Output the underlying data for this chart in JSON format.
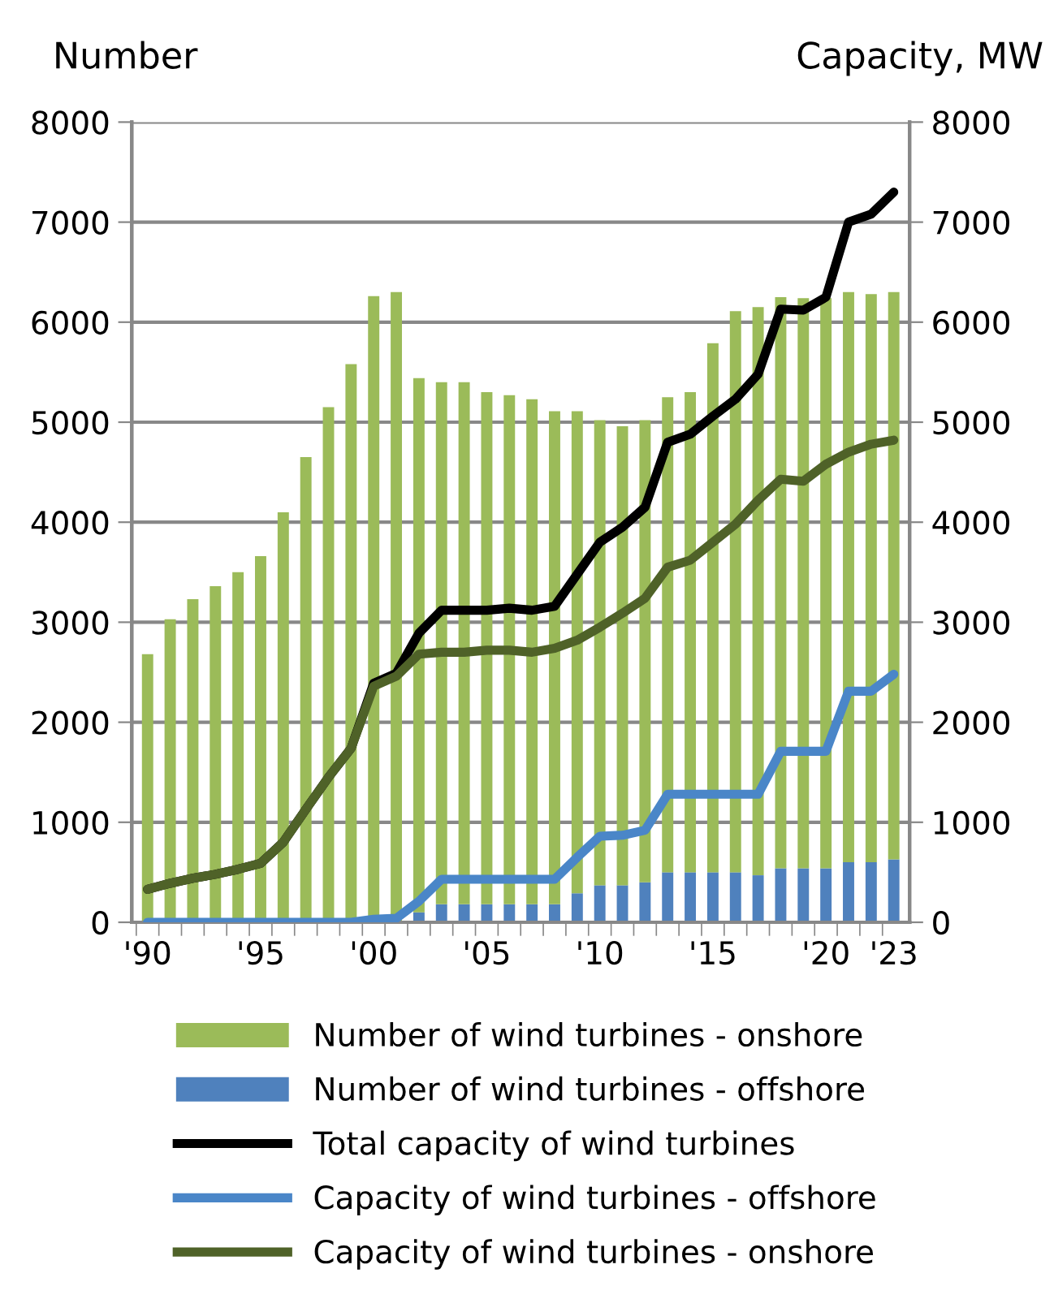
{
  "chart_data": {
    "type": "bar",
    "stacked": true,
    "ylabel": "Number",
    "y2label": "Capacity, MW",
    "categories": [
      "'90",
      null,
      null,
      null,
      null,
      "'95",
      null,
      null,
      null,
      null,
      "'00",
      null,
      null,
      null,
      null,
      "'05",
      null,
      null,
      null,
      null,
      "'10",
      null,
      null,
      null,
      null,
      "'15",
      null,
      null,
      null,
      null,
      "'20",
      null,
      null,
      "'23"
    ],
    "series": [
      {
        "name": "Number of wind turbines - offshore",
        "color": "#4f81bd",
        "values": [
          0,
          0,
          0,
          0,
          0,
          0,
          0,
          0,
          0,
          0,
          0,
          0,
          100,
          180,
          180,
          180,
          180,
          180,
          180,
          290,
          370,
          370,
          400,
          500,
          500,
          500,
          500,
          470,
          540,
          540,
          540,
          600,
          600,
          630
        ]
      },
      {
        "name": "Number of wind turbines - onshore",
        "color": "#9bbb59",
        "values": [
          2680,
          3030,
          3230,
          3360,
          3500,
          3660,
          4100,
          4650,
          5150,
          5580,
          6260,
          6300,
          5340,
          5220,
          5220,
          5120,
          5090,
          5050,
          4930,
          4820,
          4650,
          4590,
          4620,
          4750,
          4800,
          5290,
          5610,
          5680,
          5710,
          5700,
          5700,
          5700,
          5680,
          5670
        ]
      },
      {
        "name": "Total capacity of wind turbines",
        "type": "line",
        "axis": "y2",
        "color": "#000000",
        "values": [
          330,
          390,
          440,
          480,
          530,
          590,
          800,
          1130,
          1450,
          1740,
          2390,
          2490,
          2890,
          3120,
          3120,
          3120,
          3140,
          3120,
          3160,
          3480,
          3800,
          3950,
          4150,
          4800,
          4880,
          5060,
          5230,
          5480,
          6130,
          6120,
          6250,
          7000,
          7080,
          7300
        ]
      },
      {
        "name": "Capacity of wind turbines - offshore",
        "type": "line",
        "axis": "y2",
        "color": "#4a86c8",
        "values": [
          0,
          0,
          0,
          0,
          0,
          0,
          0,
          0,
          0,
          0,
          30,
          40,
          210,
          430,
          430,
          430,
          430,
          430,
          430,
          650,
          860,
          870,
          920,
          1280,
          1280,
          1280,
          1280,
          1280,
          1710,
          1710,
          1710,
          2310,
          2310,
          2480
        ]
      },
      {
        "name": "Capacity of wind turbines - onshore",
        "type": "line",
        "axis": "y2",
        "color": "#4f6228",
        "values": [
          330,
          390,
          440,
          480,
          530,
          590,
          800,
          1130,
          1450,
          1740,
          2360,
          2460,
          2680,
          2700,
          2700,
          2720,
          2720,
          2700,
          2740,
          2820,
          2950,
          3090,
          3240,
          3550,
          3620,
          3800,
          3980,
          4220,
          4430,
          4410,
          4580,
          4700,
          4780,
          4820
        ]
      }
    ],
    "ylim": [
      0,
      8000
    ],
    "yticks": [
      0,
      1000,
      2000,
      3000,
      4000,
      5000,
      6000,
      7000,
      8000
    ],
    "y2lim": [
      0,
      8000
    ],
    "y2ticks": [
      0,
      1000,
      2000,
      3000,
      4000,
      5000,
      6000,
      7000,
      8000
    ],
    "grid": "y",
    "legend": "bottom",
    "marker": "none",
    "line_style": "solid"
  }
}
